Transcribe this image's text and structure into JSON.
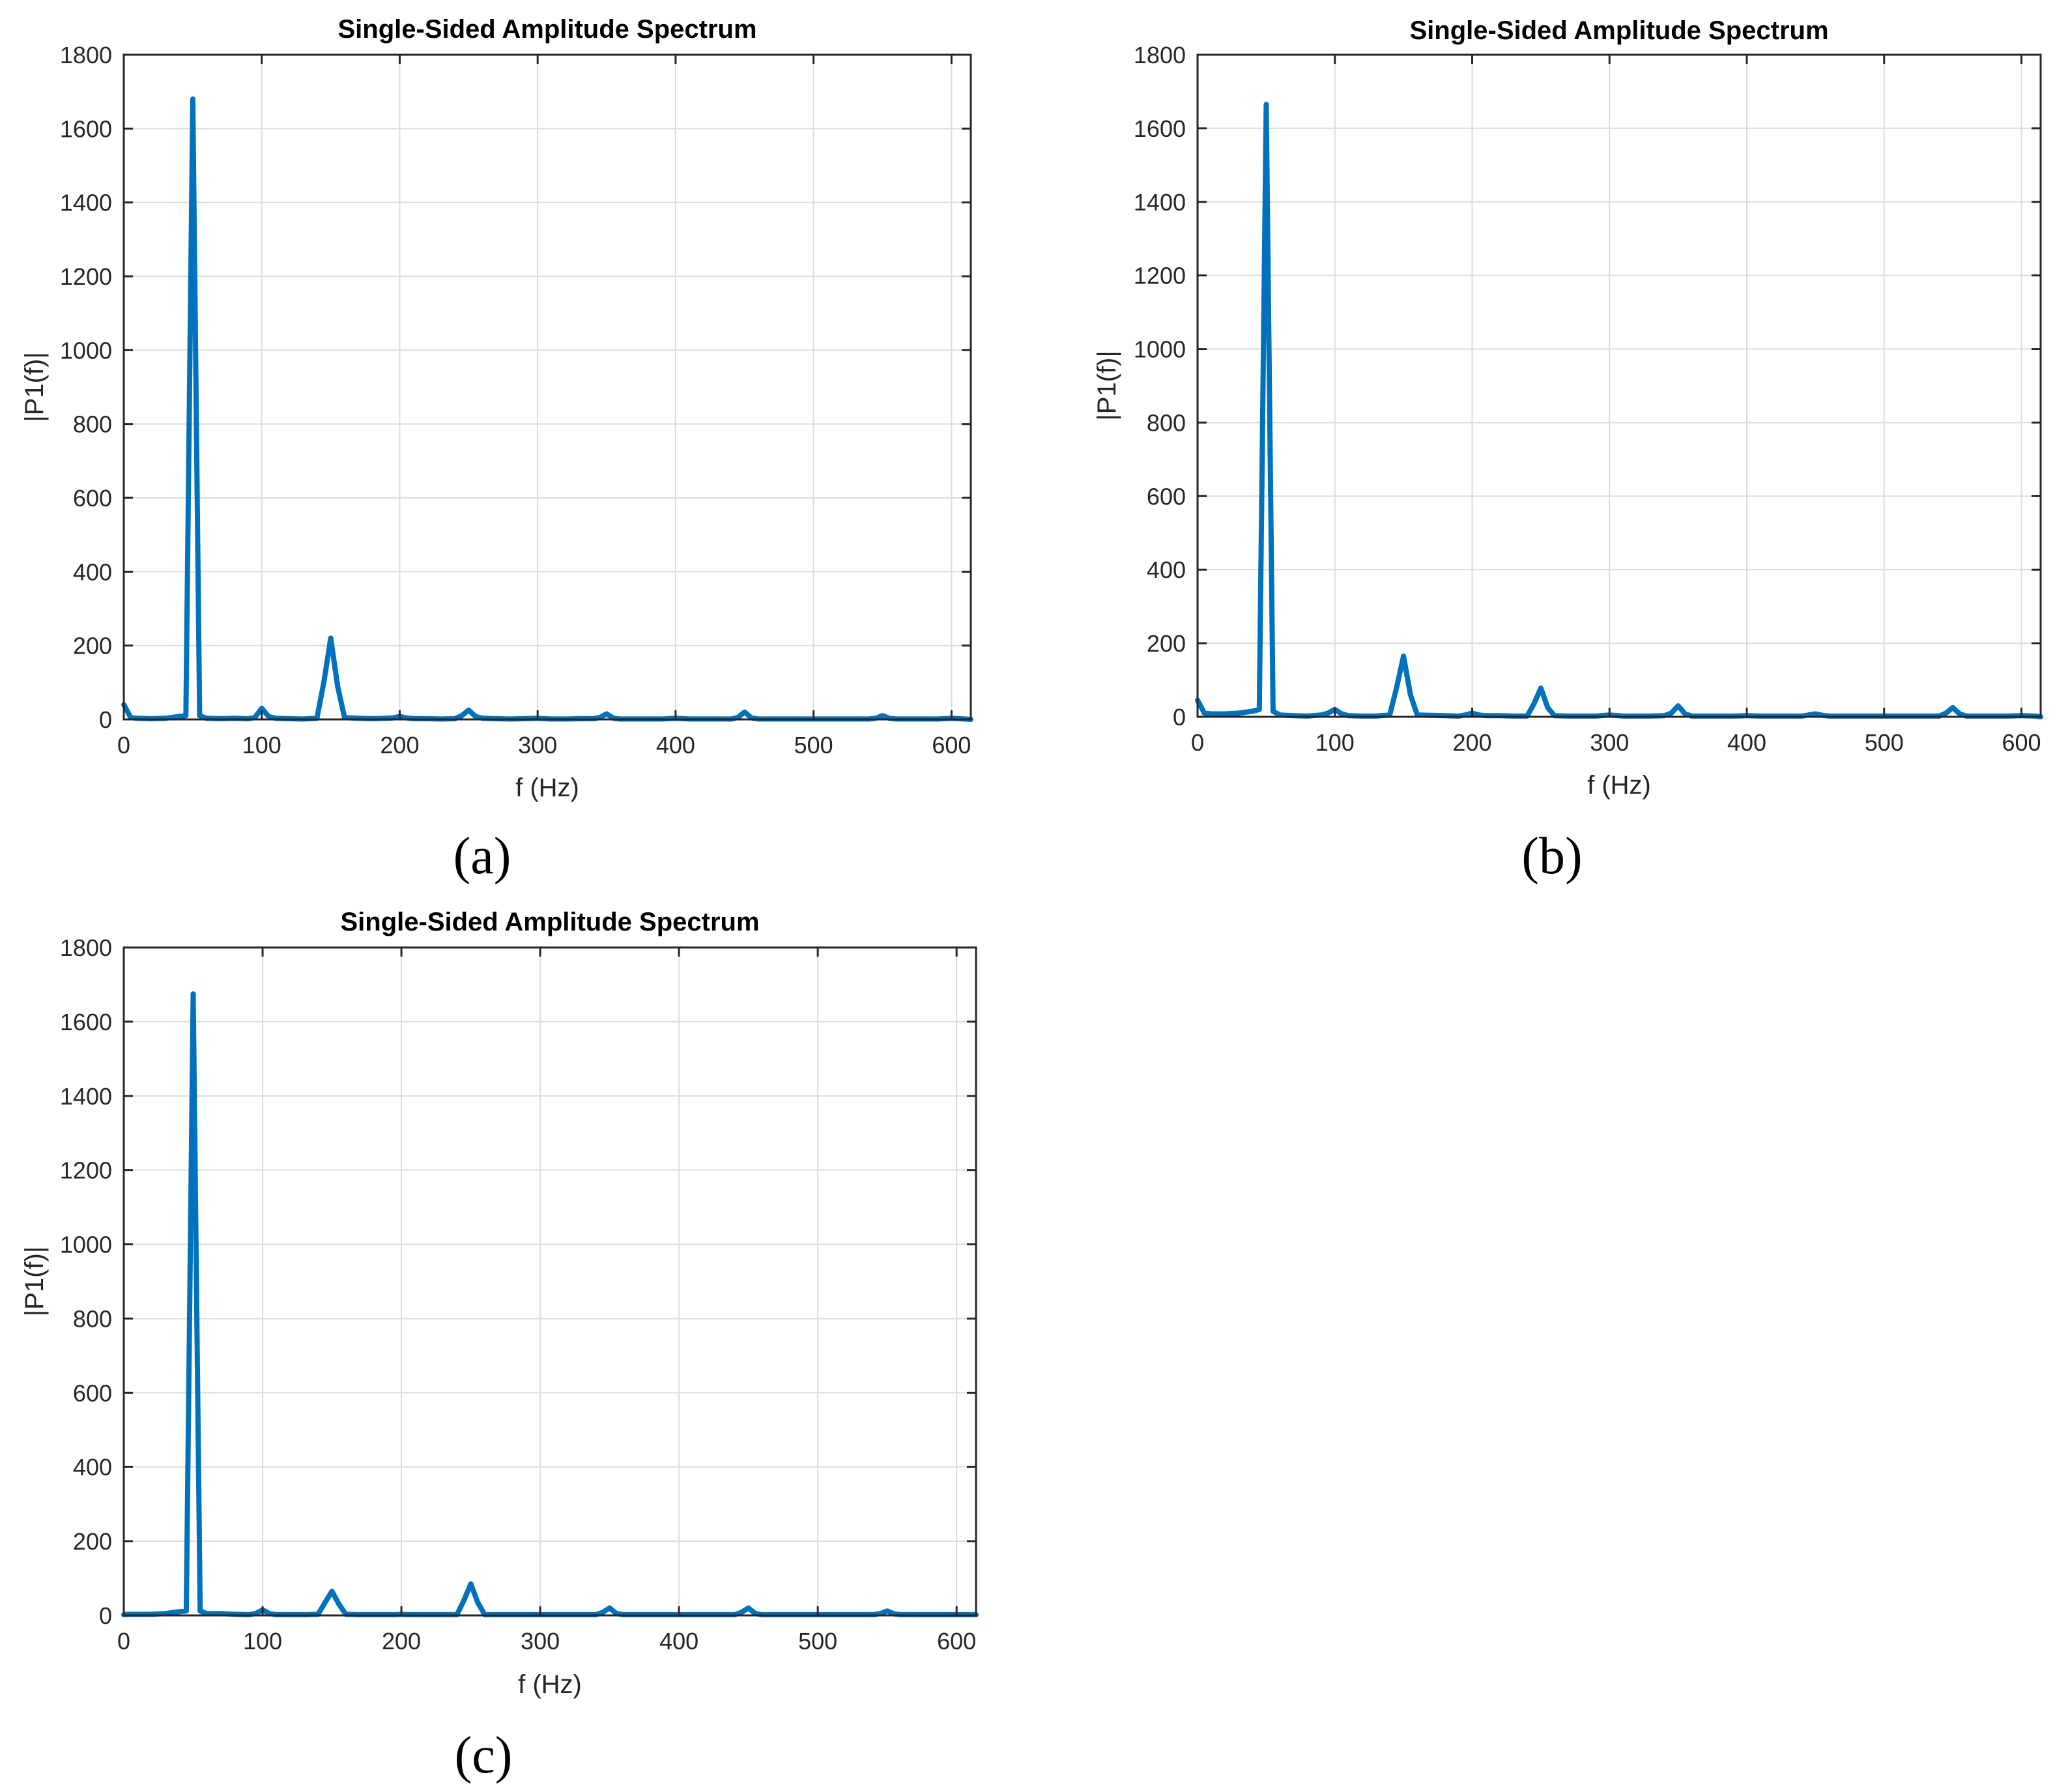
{
  "panels": [
    {
      "caption": "(a)"
    },
    {
      "caption": "(b)"
    },
    {
      "caption": "(c)"
    }
  ],
  "chart_data": [
    {
      "type": "line",
      "title": "Single-Sided Amplitude Spectrum",
      "xlabel": "f (Hz)",
      "ylabel": "|P1(f)|",
      "xlim": [
        0,
        614
      ],
      "ylim": [
        0,
        1800
      ],
      "xticks": [
        0,
        100,
        200,
        300,
        400,
        500,
        600
      ],
      "yticks": [
        0,
        200,
        400,
        600,
        800,
        1000,
        1200,
        1400,
        1600,
        1800
      ],
      "grid": true,
      "color": "#0072BD",
      "series": [
        {
          "x": [
            0,
            5,
            10,
            20,
            30,
            40,
            45,
            50,
            55,
            60,
            70,
            80,
            90,
            95,
            100,
            105,
            110,
            120,
            130,
            140,
            145,
            150,
            155,
            160,
            170,
            180,
            190,
            195,
            200,
            205,
            210,
            220,
            230,
            240,
            245,
            250,
            255,
            260,
            270,
            280,
            290,
            300,
            310,
            320,
            330,
            340,
            345,
            350,
            355,
            360,
            370,
            380,
            390,
            400,
            410,
            420,
            430,
            440,
            445,
            450,
            455,
            460,
            470,
            480,
            490,
            500,
            510,
            520,
            530,
            540,
            545,
            550,
            555,
            560,
            570,
            580,
            590,
            600,
            610,
            614
          ],
          "y": [
            40,
            5,
            3,
            2,
            3,
            8,
            10,
            1680,
            10,
            3,
            2,
            3,
            2,
            5,
            30,
            8,
            3,
            2,
            1,
            3,
            100,
            220,
            90,
            5,
            3,
            2,
            3,
            4,
            8,
            4,
            2,
            2,
            1,
            2,
            10,
            25,
            8,
            3,
            2,
            1,
            2,
            3,
            1,
            1,
            2,
            2,
            5,
            15,
            3,
            1,
            1,
            1,
            1,
            3,
            1,
            1,
            1,
            1,
            5,
            20,
            4,
            1,
            1,
            1,
            1,
            1,
            1,
            1,
            1,
            1,
            3,
            10,
            3,
            1,
            1,
            1,
            1,
            3,
            1,
            0
          ]
        }
      ]
    },
    {
      "type": "line",
      "title": "Single-Sided Amplitude Spectrum",
      "xlabel": "f (Hz)",
      "ylabel": "|P1(f)|",
      "xlim": [
        0,
        614
      ],
      "ylim": [
        0,
        1800
      ],
      "xticks": [
        0,
        100,
        200,
        300,
        400,
        500,
        600
      ],
      "yticks": [
        0,
        200,
        400,
        600,
        800,
        1000,
        1200,
        1400,
        1600,
        1800
      ],
      "grid": true,
      "color": "#0072BD",
      "series": [
        {
          "x": [
            0,
            5,
            10,
            20,
            30,
            40,
            45,
            50,
            55,
            60,
            70,
            80,
            90,
            95,
            100,
            105,
            110,
            120,
            130,
            140,
            145,
            150,
            155,
            160,
            170,
            180,
            190,
            195,
            200,
            205,
            210,
            220,
            230,
            240,
            245,
            250,
            255,
            260,
            270,
            280,
            290,
            300,
            310,
            320,
            330,
            340,
            345,
            350,
            355,
            360,
            370,
            380,
            390,
            400,
            410,
            420,
            430,
            440,
            445,
            450,
            455,
            460,
            470,
            480,
            490,
            500,
            510,
            520,
            530,
            540,
            545,
            550,
            555,
            560,
            570,
            580,
            590,
            600,
            610,
            614
          ],
          "y": [
            45,
            10,
            8,
            8,
            10,
            15,
            20,
            1665,
            15,
            5,
            3,
            2,
            5,
            10,
            20,
            8,
            3,
            2,
            2,
            5,
            80,
            165,
            60,
            5,
            4,
            3,
            2,
            5,
            10,
            5,
            3,
            3,
            2,
            2,
            35,
            78,
            25,
            3,
            2,
            2,
            2,
            5,
            2,
            2,
            2,
            3,
            10,
            30,
            8,
            2,
            2,
            2,
            2,
            3,
            2,
            2,
            2,
            2,
            5,
            8,
            4,
            2,
            2,
            2,
            2,
            2,
            2,
            2,
            2,
            2,
            10,
            25,
            8,
            2,
            2,
            2,
            2,
            3,
            2,
            0
          ]
        }
      ]
    },
    {
      "type": "line",
      "title": "Single-Sided Amplitude Spectrum",
      "xlabel": "f (Hz)",
      "ylabel": "|P1(f)|",
      "xlim": [
        0,
        614
      ],
      "ylim": [
        0,
        1800
      ],
      "xticks": [
        0,
        100,
        200,
        300,
        400,
        500,
        600
      ],
      "yticks": [
        0,
        200,
        400,
        600,
        800,
        1000,
        1200,
        1400,
        1600,
        1800
      ],
      "grid": true,
      "color": "#0072BD",
      "series": [
        {
          "x": [
            0,
            5,
            10,
            20,
            30,
            40,
            45,
            50,
            55,
            60,
            70,
            80,
            90,
            95,
            100,
            105,
            110,
            120,
            130,
            140,
            145,
            150,
            155,
            160,
            170,
            180,
            190,
            195,
            200,
            205,
            210,
            220,
            230,
            240,
            245,
            250,
            255,
            260,
            270,
            280,
            290,
            300,
            310,
            320,
            330,
            340,
            345,
            350,
            355,
            360,
            370,
            380,
            390,
            400,
            410,
            420,
            430,
            440,
            445,
            450,
            455,
            460,
            470,
            480,
            490,
            500,
            510,
            520,
            530,
            540,
            545,
            550,
            555,
            560,
            570,
            580,
            590,
            600,
            610,
            614
          ],
          "y": [
            2,
            3,
            3,
            3,
            5,
            10,
            12,
            1675,
            12,
            5,
            5,
            3,
            2,
            5,
            15,
            5,
            2,
            2,
            2,
            3,
            35,
            65,
            30,
            3,
            2,
            2,
            2,
            2,
            3,
            2,
            2,
            2,
            2,
            2,
            40,
            85,
            35,
            2,
            2,
            2,
            2,
            2,
            2,
            2,
            2,
            2,
            8,
            20,
            5,
            2,
            2,
            2,
            2,
            2,
            2,
            2,
            2,
            2,
            8,
            20,
            5,
            2,
            2,
            2,
            2,
            2,
            2,
            2,
            2,
            2,
            5,
            12,
            4,
            2,
            2,
            2,
            2,
            2,
            2,
            2
          ]
        }
      ]
    }
  ]
}
